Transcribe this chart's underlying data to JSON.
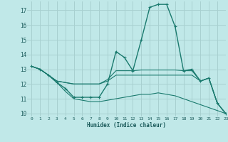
{
  "bg_color": "#c0e8e8",
  "grid_color": "#a8d0d0",
  "line_color": "#1a7a6e",
  "xlabel": "Humidex (Indice chaleur)",
  "xlim": [
    -0.5,
    23
  ],
  "ylim": [
    9.8,
    17.6
  ],
  "yticks": [
    10,
    11,
    12,
    13,
    14,
    15,
    16,
    17
  ],
  "xticks": [
    0,
    1,
    2,
    3,
    4,
    5,
    6,
    7,
    8,
    9,
    10,
    11,
    12,
    13,
    14,
    15,
    16,
    17,
    18,
    19,
    20,
    21,
    22,
    23
  ],
  "series": [
    {
      "x": [
        0,
        1,
        2,
        3,
        4,
        5,
        6,
        7,
        8,
        9,
        10,
        11,
        12,
        13,
        14,
        15,
        16,
        17,
        18,
        19,
        20,
        21,
        22,
        23
      ],
      "y": [
        13.2,
        13.0,
        12.6,
        12.1,
        11.7,
        11.1,
        11.1,
        11.1,
        11.1,
        12.0,
        14.2,
        13.8,
        12.9,
        15.0,
        17.2,
        17.4,
        17.4,
        15.9,
        12.9,
        13.0,
        12.2,
        12.4,
        10.7,
        10.0
      ],
      "marker": true,
      "lw": 1.0
    },
    {
      "x": [
        0,
        1,
        2,
        3,
        4,
        5,
        6,
        7,
        8,
        9,
        10,
        11,
        12,
        13,
        14,
        15,
        16,
        17,
        18,
        19,
        20,
        21,
        22,
        23
      ],
      "y": [
        13.2,
        13.0,
        12.6,
        12.2,
        12.1,
        12.0,
        12.0,
        12.0,
        12.0,
        12.3,
        12.9,
        12.9,
        12.9,
        12.95,
        12.95,
        12.95,
        12.95,
        12.95,
        12.9,
        12.9,
        12.2,
        12.4,
        10.7,
        10.0
      ],
      "marker": false,
      "lw": 0.8
    },
    {
      "x": [
        0,
        1,
        2,
        3,
        4,
        5,
        6,
        7,
        8,
        9,
        10,
        11,
        12,
        13,
        14,
        15,
        16,
        17,
        18,
        19,
        20,
        21,
        22,
        23
      ],
      "y": [
        13.2,
        13.0,
        12.6,
        12.2,
        12.1,
        12.0,
        12.0,
        12.0,
        12.0,
        12.2,
        12.6,
        12.6,
        12.6,
        12.6,
        12.6,
        12.6,
        12.6,
        12.6,
        12.6,
        12.6,
        12.2,
        12.4,
        10.7,
        10.0
      ],
      "marker": false,
      "lw": 0.8
    },
    {
      "x": [
        0,
        1,
        2,
        3,
        4,
        5,
        6,
        7,
        8,
        9,
        10,
        11,
        12,
        13,
        14,
        15,
        16,
        17,
        18,
        19,
        20,
        21,
        22,
        23
      ],
      "y": [
        13.2,
        13.0,
        12.6,
        12.1,
        11.5,
        11.0,
        10.9,
        10.8,
        10.8,
        10.9,
        11.0,
        11.1,
        11.2,
        11.3,
        11.3,
        11.4,
        11.3,
        11.2,
        11.0,
        10.8,
        10.6,
        10.4,
        10.2,
        10.0
      ],
      "marker": false,
      "lw": 0.8
    }
  ]
}
